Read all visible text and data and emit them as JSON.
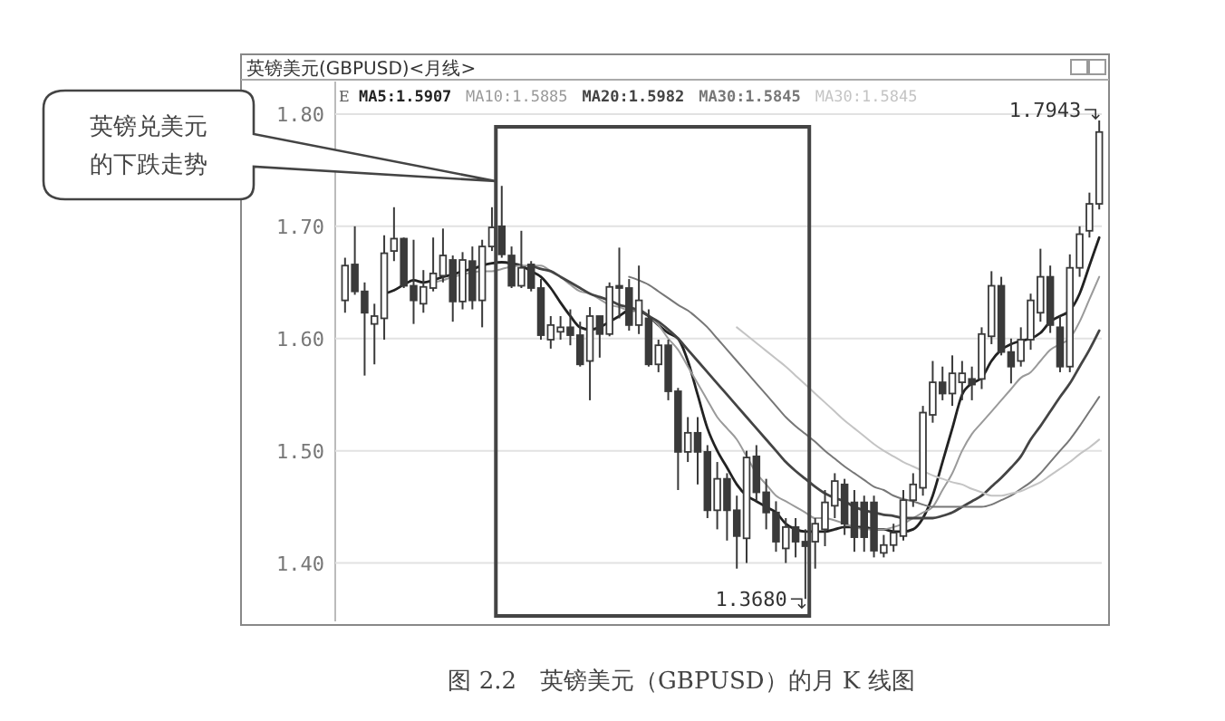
{
  "chart_data": {
    "type": "candlestick",
    "title": "英镑美元(GBPUSD)<月线>",
    "categories": [
      null,
      null,
      null,
      null,
      null,
      null,
      null,
      null,
      null,
      null,
      null,
      null,
      null,
      null,
      null,
      null,
      null,
      null,
      null,
      null,
      null,
      null,
      null,
      null,
      null,
      null,
      null,
      null,
      null,
      null,
      null,
      null,
      null,
      null,
      null,
      null,
      null,
      null,
      null,
      null,
      null,
      null,
      null,
      null,
      null,
      null,
      null,
      null,
      null,
      null,
      null,
      null,
      null,
      null,
      null,
      null,
      null,
      null,
      null,
      null,
      null,
      null,
      null,
      null,
      null,
      null,
      null,
      null,
      null,
      null,
      null,
      null,
      null,
      null,
      null,
      null,
      null,
      null
    ],
    "ylim": [
      1.348,
      1.829
    ],
    "yticks": [
      {
        "value": 1.4,
        "label": "1.40"
      },
      {
        "value": 1.5,
        "label": "1.50"
      },
      {
        "value": 1.6,
        "label": "1.60"
      },
      {
        "value": 1.7,
        "label": "1.70"
      },
      {
        "value": 1.8,
        "label": "1.80"
      }
    ],
    "grid": "y",
    "legend": "top left",
    "tick_labels": "y",
    "series": [
      {
        "color": "#3a3a3a",
        "ohlc": [
          [
            1.634,
            1.672,
            1.623,
            1.665
          ],
          [
            1.666,
            1.7,
            1.639,
            1.642
          ],
          [
            1.642,
            1.65,
            1.567,
            1.623
          ],
          [
            1.613,
            1.631,
            1.577,
            1.62
          ],
          [
            1.618,
            1.692,
            1.599,
            1.676
          ],
          [
            1.678,
            1.717,
            1.669,
            1.689
          ],
          [
            1.689,
            1.69,
            1.645,
            1.647
          ],
          [
            1.647,
            1.688,
            1.613,
            1.634
          ],
          [
            1.631,
            1.661,
            1.623,
            1.646
          ],
          [
            1.645,
            1.69,
            1.642,
            1.658
          ],
          [
            1.656,
            1.698,
            1.65,
            1.674
          ],
          [
            1.67,
            1.674,
            1.615,
            1.633
          ],
          [
            1.633,
            1.677,
            1.626,
            1.67
          ],
          [
            1.669,
            1.682,
            1.626,
            1.634
          ],
          [
            1.634,
            1.688,
            1.61,
            1.682
          ],
          [
            1.682,
            1.717,
            1.678,
            1.699
          ],
          [
            1.7,
            1.736,
            1.672,
            1.675
          ],
          [
            1.674,
            1.682,
            1.645,
            1.647
          ],
          [
            1.647,
            1.696,
            1.645,
            1.663
          ],
          [
            1.666,
            1.669,
            1.642,
            1.645
          ],
          [
            1.645,
            1.653,
            1.599,
            1.603
          ],
          [
            1.599,
            1.62,
            1.591,
            1.612
          ],
          [
            1.606,
            1.62,
            1.599,
            1.61
          ],
          [
            1.61,
            1.626,
            1.594,
            1.603
          ],
          [
            1.603,
            1.615,
            1.575,
            1.577
          ],
          [
            1.58,
            1.628,
            1.545,
            1.62
          ],
          [
            1.62,
            1.62,
            1.583,
            1.604
          ],
          [
            1.604,
            1.65,
            1.602,
            1.646
          ],
          [
            1.647,
            1.681,
            1.618,
            1.645
          ],
          [
            1.645,
            1.653,
            1.607,
            1.612
          ],
          [
            1.612,
            1.665,
            1.604,
            1.634
          ],
          [
            1.618,
            1.626,
            1.575,
            1.577
          ],
          [
            1.577,
            1.599,
            1.57,
            1.594
          ],
          [
            1.594,
            1.599,
            1.545,
            1.553
          ],
          [
            1.553,
            1.556,
            1.465,
            1.499
          ],
          [
            1.499,
            1.53,
            1.49,
            1.516
          ],
          [
            1.516,
            1.53,
            1.47,
            1.499
          ],
          [
            1.499,
            1.505,
            1.44,
            1.447
          ],
          [
            1.447,
            1.49,
            1.43,
            1.475
          ],
          [
            1.475,
            1.48,
            1.42,
            1.447
          ],
          [
            1.447,
            1.46,
            1.395,
            1.424
          ],
          [
            1.422,
            1.5,
            1.4,
            1.494
          ],
          [
            1.495,
            1.505,
            1.455,
            1.463
          ],
          [
            1.463,
            1.475,
            1.43,
            1.445
          ],
          [
            1.445,
            1.455,
            1.41,
            1.419
          ],
          [
            1.413,
            1.44,
            1.4,
            1.432
          ],
          [
            1.432,
            1.44,
            1.405,
            1.419
          ],
          [
            1.419,
            1.43,
            1.368,
            1.415
          ],
          [
            1.419,
            1.44,
            1.395,
            1.435
          ],
          [
            1.43,
            1.465,
            1.415,
            1.454
          ],
          [
            1.451,
            1.48,
            1.44,
            1.473
          ],
          [
            1.47,
            1.475,
            1.425,
            1.435
          ],
          [
            1.454,
            1.465,
            1.41,
            1.423
          ],
          [
            1.454,
            1.46,
            1.41,
            1.423
          ],
          [
            1.454,
            1.46,
            1.405,
            1.411
          ],
          [
            1.409,
            1.425,
            1.405,
            1.416
          ],
          [
            1.416,
            1.435,
            1.41,
            1.427
          ],
          [
            1.424,
            1.465,
            1.42,
            1.456
          ],
          [
            1.456,
            1.48,
            1.45,
            1.47
          ],
          [
            1.467,
            1.54,
            1.46,
            1.534
          ],
          [
            1.532,
            1.58,
            1.525,
            1.561
          ],
          [
            1.561,
            1.575,
            1.545,
            1.551
          ],
          [
            1.551,
            1.585,
            1.54,
            1.569
          ],
          [
            1.561,
            1.58,
            1.545,
            1.569
          ],
          [
            1.564,
            1.575,
            1.545,
            1.559
          ],
          [
            1.564,
            1.61,
            1.555,
            1.604
          ],
          [
            1.602,
            1.66,
            1.595,
            1.647
          ],
          [
            1.647,
            1.655,
            1.585,
            1.588
          ],
          [
            1.588,
            1.6,
            1.56,
            1.575
          ],
          [
            1.58,
            1.61,
            1.575,
            1.599
          ],
          [
            1.599,
            1.64,
            1.59,
            1.634
          ],
          [
            1.623,
            1.68,
            1.615,
            1.655
          ],
          [
            1.655,
            1.665,
            1.605,
            1.612
          ],
          [
            1.61,
            1.62,
            1.57,
            1.575
          ],
          [
            1.575,
            1.675,
            1.57,
            1.663
          ],
          [
            1.663,
            1.7,
            1.655,
            1.693
          ],
          [
            1.696,
            1.73,
            1.69,
            1.72
          ],
          [
            1.72,
            1.7943,
            1.715,
            1.784
          ]
        ]
      },
      {
        "type": "line",
        "name": "MA5:1.5907",
        "color": "#222222",
        "values": [
          null,
          null,
          null,
          null,
          1.64,
          1.643,
          1.648,
          1.652,
          1.65,
          1.652,
          1.655,
          1.657,
          1.66,
          1.662,
          1.665,
          1.667,
          1.668,
          1.667,
          1.665,
          1.66,
          1.655,
          1.645,
          1.632,
          1.62,
          1.61,
          1.608,
          1.61,
          1.615,
          1.62,
          1.625,
          1.625,
          1.62,
          1.612,
          1.605,
          1.6,
          1.58,
          1.55,
          1.52,
          1.5,
          1.485,
          1.47,
          1.46,
          1.455,
          1.45,
          1.445,
          1.435,
          1.43,
          1.428,
          1.428,
          1.428,
          1.43,
          1.432,
          1.432,
          1.432,
          1.43,
          1.43,
          1.428,
          1.428,
          1.43,
          1.44,
          1.46,
          1.49,
          1.52,
          1.55,
          1.56,
          1.565,
          1.58,
          1.59,
          1.595,
          1.598,
          1.6,
          1.605,
          1.615,
          1.62,
          1.625,
          1.64,
          1.665,
          1.69
        ]
      },
      {
        "type": "line",
        "name": "MA10:1.5885",
        "color": "#9a9a9a",
        "values": [
          null,
          null,
          null,
          null,
          null,
          null,
          null,
          null,
          null,
          1.65,
          1.652,
          1.655,
          1.657,
          1.659,
          1.66,
          1.66,
          1.662,
          1.664,
          1.665,
          1.665,
          1.665,
          1.66,
          1.655,
          1.648,
          1.642,
          1.64,
          1.635,
          1.63,
          1.628,
          1.625,
          1.625,
          1.62,
          1.612,
          1.6,
          1.59,
          1.575,
          1.56,
          1.545,
          1.53,
          1.52,
          1.51,
          1.495,
          1.48,
          1.47,
          1.46,
          1.455,
          1.45,
          1.445,
          1.44,
          1.44,
          1.438,
          1.435,
          1.432,
          1.43,
          1.43,
          1.43,
          1.432,
          1.435,
          1.44,
          1.445,
          1.45,
          1.465,
          1.48,
          1.5,
          1.515,
          1.525,
          1.535,
          1.545,
          1.555,
          1.565,
          1.57,
          1.58,
          1.59,
          1.595,
          1.6,
          1.615,
          1.635,
          1.655
        ]
      },
      {
        "type": "line",
        "name": "MA20:1.5982",
        "color": "#444444",
        "values": [
          null,
          null,
          null,
          null,
          null,
          null,
          null,
          null,
          null,
          null,
          null,
          null,
          null,
          null,
          null,
          null,
          null,
          null,
          null,
          1.665,
          1.662,
          1.66,
          1.655,
          1.65,
          1.645,
          1.64,
          1.637,
          1.634,
          1.63,
          1.628,
          1.625,
          1.62,
          1.615,
          1.608,
          1.6,
          1.59,
          1.58,
          1.57,
          1.56,
          1.55,
          1.54,
          1.53,
          1.52,
          1.51,
          1.5,
          1.49,
          1.482,
          1.475,
          1.468,
          1.462,
          1.458,
          1.455,
          1.45,
          1.447,
          1.445,
          1.443,
          1.442,
          1.44,
          1.44,
          1.44,
          1.44,
          1.442,
          1.445,
          1.45,
          1.455,
          1.46,
          1.468,
          1.476,
          1.485,
          1.495,
          1.51,
          1.522,
          1.535,
          1.548,
          1.56,
          1.575,
          1.59,
          1.607
        ]
      },
      {
        "type": "line",
        "name": "MA30:1.5845",
        "color": "#777777",
        "values": [
          null,
          null,
          null,
          null,
          null,
          null,
          null,
          null,
          null,
          null,
          null,
          null,
          null,
          null,
          null,
          null,
          null,
          null,
          null,
          null,
          null,
          null,
          null,
          null,
          null,
          null,
          null,
          null,
          null,
          1.655,
          1.652,
          1.648,
          1.642,
          1.636,
          1.63,
          1.625,
          1.618,
          1.61,
          1.6,
          1.59,
          1.58,
          1.57,
          1.56,
          1.55,
          1.54,
          1.53,
          1.522,
          1.515,
          1.508,
          1.5,
          1.493,
          1.486,
          1.48,
          1.474,
          1.468,
          1.465,
          1.46,
          1.457,
          1.455,
          1.452,
          1.45,
          1.45,
          1.45,
          1.45,
          1.45,
          1.45,
          1.452,
          1.456,
          1.46,
          1.466,
          1.472,
          1.48,
          1.49,
          1.5,
          1.51,
          1.522,
          1.535,
          1.548
        ]
      },
      {
        "type": "line",
        "name": "MA30:1.5845",
        "color": "#c4c4c4",
        "values": [
          null,
          null,
          null,
          null,
          null,
          null,
          null,
          null,
          null,
          null,
          null,
          null,
          null,
          null,
          null,
          null,
          null,
          null,
          null,
          null,
          null,
          null,
          null,
          null,
          null,
          null,
          null,
          null,
          null,
          null,
          null,
          null,
          null,
          null,
          null,
          null,
          null,
          null,
          null,
          null,
          1.61,
          1.603,
          1.596,
          1.589,
          1.582,
          1.575,
          1.567,
          1.559,
          1.551,
          1.543,
          1.535,
          1.527,
          1.52,
          1.513,
          1.506,
          1.5,
          1.495,
          1.49,
          1.486,
          1.482,
          1.478,
          1.475,
          1.472,
          1.47,
          1.466,
          1.463,
          1.46,
          1.46,
          1.462,
          1.464,
          1.468,
          1.472,
          1.478,
          1.484,
          1.49,
          1.497,
          1.503,
          1.51
        ]
      }
    ],
    "annotations": [
      "英镑兑美元的下跌走势",
      "图 2.2　英镑美元（GBPUSD）的月 K 线图",
      "E",
      "1.7943",
      "1.3680"
    ]
  }
}
